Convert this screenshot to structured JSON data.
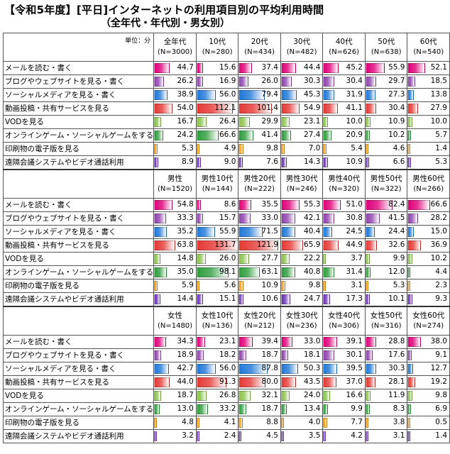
{
  "title": "【令和5年度】[平日]インターネットの利用項目別の平均利用時間",
  "subtitle": "（全年代・年代別・男女別）",
  "unit_label": "単位：分",
  "max_value": 131.7,
  "colors": [
    "#e0007a",
    "#8e44ad",
    "#1e78d8",
    "#e53935",
    "#8bc34a",
    "#2e9e3e",
    "#ff9800",
    "#6a2fb6"
  ],
  "row_labels": [
    "メールを読む・書く",
    "ブログやウェブサイトを見る・書く",
    "ソーシャルメディアを見る・書く",
    "動画投稿・共有サービスを見る",
    "VODを見る",
    "オンラインゲーム・ソーシャルゲームをする",
    "印刷物の電子版を見る",
    "遠隔会議システムやビデオ通話利用"
  ],
  "groups": [
    {
      "columns": [
        {
          "name": "全年代",
          "n": "(N=3000)"
        },
        {
          "name": "10代",
          "n": "(N=280)"
        },
        {
          "name": "20代",
          "n": "(N=434)"
        },
        {
          "name": "30代",
          "n": "(N=482)"
        },
        {
          "name": "40代",
          "n": "(N=626)"
        },
        {
          "name": "50代",
          "n": "(N=638)"
        },
        {
          "name": "60代",
          "n": "(N=540)"
        }
      ],
      "rows": [
        [
          "44.7",
          "15.6",
          "37.4",
          "44.4",
          "45.2",
          "55.9",
          "52.1"
        ],
        [
          "26.2",
          "16.9",
          "26.0",
          "30.3",
          "30.4",
          "29.7",
          "18.5"
        ],
        [
          "38.9",
          "56.0",
          "79.4",
          "45.3",
          "31.9",
          "27.3",
          "13.8"
        ],
        [
          "54.0",
          "112.1",
          "101.4",
          "54.9",
          "41.1",
          "30.4",
          "27.9"
        ],
        [
          "16.7",
          "26.4",
          "29.9",
          "23.1",
          "10.0",
          "10.9",
          "10.0"
        ],
        [
          "24.2",
          "66.6",
          "41.4",
          "27.4",
          "20.9",
          "10.2",
          "5.7"
        ],
        [
          "5.3",
          "4.9",
          "9.8",
          "7.0",
          "5.4",
          "4.6",
          "1.4"
        ],
        [
          "8.9",
          "9.0",
          "7.6",
          "14.3",
          "10.9",
          "6.6",
          "5.3"
        ]
      ]
    },
    {
      "columns": [
        {
          "name": "男性",
          "n": "(N=1520)"
        },
        {
          "name": "男性10代",
          "n": "(N=144)"
        },
        {
          "name": "男性20代",
          "n": "(N=222)"
        },
        {
          "name": "男性30代",
          "n": "(N=246)"
        },
        {
          "name": "男性40代",
          "n": "(N=320)"
        },
        {
          "name": "男性50代",
          "n": "(N=322)"
        },
        {
          "name": "男性60代",
          "n": "(N=266)"
        }
      ],
      "rows": [
        [
          "54.8",
          "8.6",
          "35.5",
          "55.3",
          "51.0",
          "82.4",
          "66.6"
        ],
        [
          "33.3",
          "15.7",
          "33.0",
          "42.1",
          "30.8",
          "41.5",
          "28.2"
        ],
        [
          "35.2",
          "55.9",
          "71.5",
          "40.4",
          "24.5",
          "24.4",
          "15.0"
        ],
        [
          "63.8",
          "131.7",
          "121.9",
          "65.9",
          "44.9",
          "32.6",
          "36.9"
        ],
        [
          "14.8",
          "26.0",
          "27.7",
          "22.2",
          "3.7",
          "9.9",
          "10.2"
        ],
        [
          "35.0",
          "98.1",
          "63.1",
          "40.8",
          "31.4",
          "12.0",
          "4.4"
        ],
        [
          "5.9",
          "5.6",
          "10.9",
          "9.8",
          "3.1",
          "5.3",
          "2.3"
        ],
        [
          "14.4",
          "15.1",
          "10.6",
          "24.7",
          "17.3",
          "10.1",
          "9.3"
        ]
      ]
    },
    {
      "columns": [
        {
          "name": "女性",
          "n": "(N=1480)"
        },
        {
          "name": "女性10代",
          "n": "(N=136)"
        },
        {
          "name": "女性20代",
          "n": "(N=212)"
        },
        {
          "name": "女性30代",
          "n": "(N=236)"
        },
        {
          "name": "女性40代",
          "n": "(N=306)"
        },
        {
          "name": "女性50代",
          "n": "(N=316)"
        },
        {
          "name": "女性60代",
          "n": "(N=274)"
        }
      ],
      "rows": [
        [
          "34.3",
          "23.1",
          "39.4",
          "33.0",
          "39.1",
          "28.8",
          "38.0"
        ],
        [
          "18.9",
          "18.2",
          "18.7",
          "18.1",
          "30.1",
          "17.6",
          "9.1"
        ],
        [
          "42.7",
          "56.0",
          "87.8",
          "50.3",
          "39.5",
          "30.3",
          "12.7"
        ],
        [
          "44.0",
          "91.3",
          "80.0",
          "43.5",
          "37.0",
          "28.1",
          "19.2"
        ],
        [
          "18.7",
          "26.8",
          "32.1",
          "24.0",
          "16.6",
          "11.9",
          "9.8"
        ],
        [
          "13.0",
          "33.2",
          "18.7",
          "13.4",
          "9.9",
          "8.3",
          "6.9"
        ],
        [
          "4.8",
          "4.1",
          "8.8",
          "4.0",
          "7.7",
          "3.8",
          "0.5"
        ],
        [
          "3.2",
          "2.4",
          "4.5",
          "3.5",
          "4.2",
          "3.1",
          "1.4"
        ]
      ]
    }
  ]
}
